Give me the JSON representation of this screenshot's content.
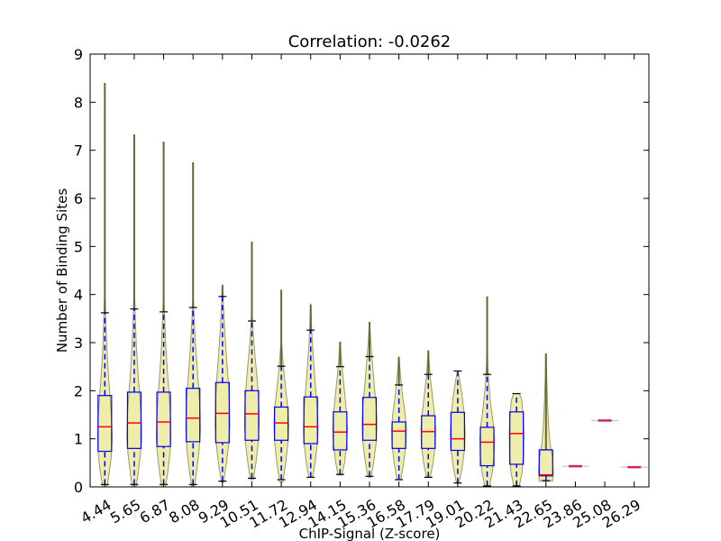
{
  "chart_data": {
    "type": "violin",
    "title": "Correlation: -0.0262",
    "xlabel": "ChIP-Signal (Z-score)",
    "ylabel": "Number of Binding Sites",
    "ylim": [
      0,
      9
    ],
    "yticks": [
      "0",
      "1",
      "2",
      "3",
      "4",
      "5",
      "6",
      "7",
      "8",
      "9"
    ],
    "grid": false,
    "colors": {
      "violin_fill": "#eeeeaa",
      "violin_edge": "#9a9a6a",
      "box": "#0000ff",
      "median": "#ff0000",
      "whisker": "#0000ff",
      "cap": "#000000",
      "tail": "#666633"
    },
    "groups": [
      {
        "label": "4.44",
        "q1": 0.74,
        "median": 1.25,
        "q3": 1.9,
        "whisker_low": 0.05,
        "whisker_high": 3.62,
        "max": 8.4,
        "violin_width": 0.5,
        "profile": [
          [
            0.0,
            0.3
          ],
          [
            0.3,
            0.6
          ],
          [
            0.6,
            0.85
          ],
          [
            1.0,
            1.0
          ],
          [
            1.3,
            0.95
          ],
          [
            1.7,
            0.8
          ],
          [
            2.2,
            0.55
          ],
          [
            2.8,
            0.3
          ],
          [
            3.4,
            0.15
          ],
          [
            3.9,
            0.06
          ]
        ]
      },
      {
        "label": "5.65",
        "q1": 0.8,
        "median": 1.33,
        "q3": 1.97,
        "whisker_low": 0.05,
        "whisker_high": 3.7,
        "max": 7.33,
        "violin_width": 0.5,
        "profile": [
          [
            0.0,
            0.25
          ],
          [
            0.3,
            0.55
          ],
          [
            0.7,
            0.85
          ],
          [
            1.0,
            1.0
          ],
          [
            1.4,
            0.95
          ],
          [
            1.8,
            0.8
          ],
          [
            2.3,
            0.55
          ],
          [
            2.9,
            0.3
          ],
          [
            3.5,
            0.14
          ],
          [
            4.0,
            0.05
          ]
        ]
      },
      {
        "label": "6.87",
        "q1": 0.84,
        "median": 1.35,
        "q3": 1.97,
        "whisker_low": 0.05,
        "whisker_high": 3.64,
        "max": 7.18,
        "violin_width": 0.5,
        "profile": [
          [
            0.0,
            0.25
          ],
          [
            0.3,
            0.55
          ],
          [
            0.7,
            0.85
          ],
          [
            1.0,
            1.0
          ],
          [
            1.4,
            0.95
          ],
          [
            1.8,
            0.8
          ],
          [
            2.3,
            0.55
          ],
          [
            2.9,
            0.3
          ],
          [
            3.5,
            0.14
          ],
          [
            3.9,
            0.05
          ]
        ]
      },
      {
        "label": "8.08",
        "q1": 0.94,
        "median": 1.43,
        "q3": 2.05,
        "whisker_low": 0.05,
        "whisker_high": 3.73,
        "max": 6.75,
        "violin_width": 0.5,
        "profile": [
          [
            0.0,
            0.2
          ],
          [
            0.4,
            0.55
          ],
          [
            0.8,
            0.85
          ],
          [
            1.2,
            1.0
          ],
          [
            1.6,
            0.95
          ],
          [
            2.0,
            0.8
          ],
          [
            2.5,
            0.55
          ],
          [
            3.0,
            0.32
          ],
          [
            3.5,
            0.15
          ],
          [
            3.9,
            0.05
          ]
        ]
      },
      {
        "label": "9.29",
        "q1": 0.92,
        "median": 1.53,
        "q3": 2.17,
        "whisker_low": 0.12,
        "whisker_high": 3.96,
        "max": 4.2,
        "violin_width": 0.5,
        "profile": [
          [
            0.1,
            0.15
          ],
          [
            0.5,
            0.55
          ],
          [
            0.9,
            0.85
          ],
          [
            1.3,
            1.0
          ],
          [
            1.7,
            0.95
          ],
          [
            2.2,
            0.8
          ],
          [
            2.7,
            0.55
          ],
          [
            3.2,
            0.32
          ],
          [
            3.7,
            0.15
          ],
          [
            4.2,
            0.02
          ]
        ]
      },
      {
        "label": "10.51",
        "q1": 0.97,
        "median": 1.52,
        "q3": 2.0,
        "whisker_low": 0.18,
        "whisker_high": 3.45,
        "max": 5.1,
        "violin_width": 0.5,
        "profile": [
          [
            0.15,
            0.2
          ],
          [
            0.5,
            0.55
          ],
          [
            0.9,
            0.85
          ],
          [
            1.3,
            1.0
          ],
          [
            1.7,
            0.95
          ],
          [
            2.2,
            0.75
          ],
          [
            2.7,
            0.45
          ],
          [
            3.1,
            0.22
          ],
          [
            3.5,
            0.08
          ]
        ]
      },
      {
        "label": "11.72",
        "q1": 0.97,
        "median": 1.33,
        "q3": 1.66,
        "whisker_low": 0.15,
        "whisker_high": 2.51,
        "max": 4.1,
        "violin_width": 0.5,
        "profile": [
          [
            0.1,
            0.2
          ],
          [
            0.5,
            0.6
          ],
          [
            0.9,
            0.9
          ],
          [
            1.3,
            1.0
          ],
          [
            1.7,
            0.85
          ],
          [
            2.1,
            0.55
          ],
          [
            2.5,
            0.28
          ],
          [
            2.9,
            0.1
          ]
        ]
      },
      {
        "label": "12.94",
        "q1": 0.9,
        "median": 1.25,
        "q3": 1.87,
        "whisker_low": 0.2,
        "whisker_high": 3.26,
        "max": 3.79,
        "violin_width": 0.5,
        "profile": [
          [
            0.2,
            0.25
          ],
          [
            0.5,
            0.6
          ],
          [
            0.9,
            0.9
          ],
          [
            1.2,
            1.0
          ],
          [
            1.6,
            0.9
          ],
          [
            2.0,
            0.7
          ],
          [
            2.5,
            0.45
          ],
          [
            3.0,
            0.22
          ],
          [
            3.5,
            0.08
          ],
          [
            3.8,
            0.02
          ]
        ]
      },
      {
        "label": "14.15",
        "q1": 0.77,
        "median": 1.14,
        "q3": 1.56,
        "whisker_low": 0.26,
        "whisker_high": 2.5,
        "max": 3.02,
        "violin_width": 0.5,
        "profile": [
          [
            0.25,
            0.25
          ],
          [
            0.5,
            0.6
          ],
          [
            0.9,
            0.9
          ],
          [
            1.2,
            1.0
          ],
          [
            1.5,
            0.9
          ],
          [
            1.9,
            0.65
          ],
          [
            2.3,
            0.38
          ],
          [
            2.7,
            0.15
          ],
          [
            3.0,
            0.03
          ]
        ]
      },
      {
        "label": "15.36",
        "q1": 0.97,
        "median": 1.3,
        "q3": 1.86,
        "whisker_low": 0.22,
        "whisker_high": 2.71,
        "max": 3.43,
        "violin_width": 0.5,
        "profile": [
          [
            0.2,
            0.2
          ],
          [
            0.5,
            0.55
          ],
          [
            0.9,
            0.9
          ],
          [
            1.3,
            1.0
          ],
          [
            1.7,
            0.9
          ],
          [
            2.1,
            0.65
          ],
          [
            2.6,
            0.38
          ],
          [
            3.0,
            0.18
          ],
          [
            3.4,
            0.03
          ]
        ]
      },
      {
        "label": "16.58",
        "q1": 0.8,
        "median": 1.16,
        "q3": 1.35,
        "whisker_low": 0.15,
        "whisker_high": 2.12,
        "max": 2.7,
        "violin_width": 0.5,
        "profile": [
          [
            0.15,
            0.25
          ],
          [
            0.5,
            0.65
          ],
          [
            0.9,
            0.95
          ],
          [
            1.2,
            1.0
          ],
          [
            1.5,
            0.85
          ],
          [
            1.9,
            0.5
          ],
          [
            2.3,
            0.22
          ],
          [
            2.7,
            0.03
          ]
        ]
      },
      {
        "label": "17.79",
        "q1": 0.8,
        "median": 1.15,
        "q3": 1.48,
        "whisker_low": 0.2,
        "whisker_high": 2.34,
        "max": 2.84,
        "violin_width": 0.5,
        "profile": [
          [
            0.2,
            0.25
          ],
          [
            0.5,
            0.65
          ],
          [
            0.9,
            0.95
          ],
          [
            1.2,
            1.0
          ],
          [
            1.5,
            0.85
          ],
          [
            1.9,
            0.55
          ],
          [
            2.3,
            0.25
          ],
          [
            2.8,
            0.03
          ]
        ]
      },
      {
        "label": "19.01",
        "q1": 0.76,
        "median": 1.0,
        "q3": 1.55,
        "whisker_low": 0.08,
        "whisker_high": 2.41,
        "max": 2.41,
        "violin_width": 0.5,
        "profile": [
          [
            0.1,
            0.2
          ],
          [
            0.4,
            0.6
          ],
          [
            0.8,
            0.95
          ],
          [
            1.1,
            1.0
          ],
          [
            1.5,
            0.9
          ],
          [
            1.9,
            0.6
          ],
          [
            2.2,
            0.3
          ],
          [
            2.4,
            0.05
          ]
        ]
      },
      {
        "label": "20.22",
        "q1": 0.44,
        "median": 0.93,
        "q3": 1.24,
        "whisker_low": 0.02,
        "whisker_high": 2.34,
        "max": 3.96,
        "violin_width": 0.5,
        "profile": [
          [
            0.0,
            0.3
          ],
          [
            0.3,
            0.7
          ],
          [
            0.7,
            0.95
          ],
          [
            1.0,
            1.0
          ],
          [
            1.3,
            0.85
          ],
          [
            1.7,
            0.5
          ],
          [
            2.1,
            0.25
          ],
          [
            2.5,
            0.1
          ],
          [
            3.0,
            0.03
          ]
        ]
      },
      {
        "label": "21.43",
        "q1": 0.47,
        "median": 1.11,
        "q3": 1.56,
        "whisker_low": 0.02,
        "whisker_high": 1.94,
        "max": 1.94,
        "violin_width": 0.5,
        "profile": [
          [
            0.0,
            0.35
          ],
          [
            0.3,
            0.75
          ],
          [
            0.7,
            0.95
          ],
          [
            1.1,
            1.0
          ],
          [
            1.5,
            0.9
          ],
          [
            1.8,
            0.7
          ],
          [
            1.94,
            0.4
          ]
        ]
      },
      {
        "label": "22.65",
        "q1": 0.23,
        "median": 0.25,
        "q3": 0.77,
        "whisker_low": 0.13,
        "whisker_high": 0.77,
        "max": 2.77,
        "violin_width": 0.5,
        "profile": [
          [
            0.12,
            0.9
          ],
          [
            0.3,
            1.0
          ],
          [
            0.6,
            0.9
          ],
          [
            0.9,
            0.55
          ],
          [
            1.3,
            0.35
          ],
          [
            1.8,
            0.2
          ],
          [
            2.3,
            0.1
          ],
          [
            2.77,
            0.03
          ]
        ]
      },
      {
        "label": "23.86",
        "q1": 0.43,
        "median": 0.43,
        "q3": 0.43,
        "whisker_low": 0.43,
        "whisker_high": 0.43,
        "max": 0.43,
        "violin_width": 0.0,
        "profile": []
      },
      {
        "label": "25.08",
        "q1": 1.38,
        "median": 1.38,
        "q3": 1.38,
        "whisker_low": 1.38,
        "whisker_high": 1.38,
        "max": 1.38,
        "violin_width": 0.0,
        "profile": []
      },
      {
        "label": "26.29",
        "q1": 0.41,
        "median": 0.41,
        "q3": 0.41,
        "whisker_low": 0.41,
        "whisker_high": 0.41,
        "max": 0.41,
        "violin_width": 0.0,
        "profile": []
      }
    ]
  }
}
